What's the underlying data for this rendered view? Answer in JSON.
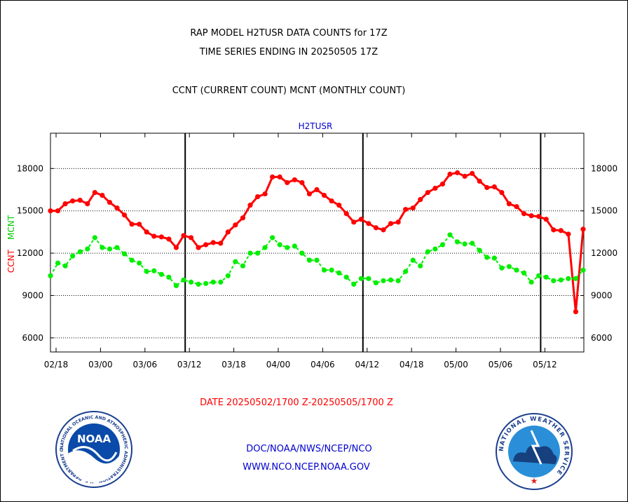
{
  "header": {
    "title_line1": "RAP MODEL H2TUSR DATA COUNTS for 17Z",
    "title_line2": "TIME SERIES ENDING IN 20250505 17Z",
    "subtitle": "CCNT (CURRENT COUNT) MCNT (MONTHLY COUNT)"
  },
  "footer": {
    "date_range": "DATE 20250502/1700 Z-20250505/1700 Z",
    "link1": "DOC/NOAA/NWS/NCEP/NCO",
    "link2": "WWW.NCO.NCEP.NOAA.GOV"
  },
  "logos": {
    "noaa_text": "NOAA",
    "noaa_ring": "NATIONAL OCEANIC AND ATMOSPHERIC ADMINISTRATION · U.S. DEPARTMENT OF COMMERCE",
    "nws_ring": "NATIONAL WEATHER SERVICE"
  },
  "colors": {
    "ccnt": "#ff0000",
    "mcnt": "#00ee00",
    "label_blue": "#0000cc",
    "date_red": "#ff0000"
  },
  "chart_data": {
    "type": "line",
    "title": "H2TUSR",
    "ylabel_left_parts": [
      "CCNT",
      "MCNT"
    ],
    "ylim": [
      5000,
      20500
    ],
    "yticks": [
      6000,
      9000,
      12000,
      15000,
      18000
    ],
    "ytick_labels": [
      "6000",
      "9000",
      "12000",
      "15000",
      "18000"
    ],
    "xticks": [
      "02/18",
      "03/00",
      "03/06",
      "03/12",
      "03/18",
      "04/00",
      "04/06",
      "04/12",
      "04/18",
      "05/00",
      "05/06",
      "05/12"
    ],
    "grid": true,
    "series": [
      {
        "name": "CCNT",
        "color": "#ff0000",
        "values": [
          15000,
          15000,
          15500,
          15700,
          15750,
          15500,
          16300,
          16100,
          15600,
          15200,
          14700,
          14050,
          14050,
          13500,
          13200,
          13150,
          13000,
          12400,
          13250,
          13100,
          12400,
          12600,
          12750,
          12700,
          13500,
          14000,
          14500,
          15400,
          16000,
          16200,
          17400,
          17400,
          17000,
          17200,
          17000,
          16200,
          16500,
          16100,
          15700,
          15400,
          14800,
          14200,
          14400,
          14100,
          13800,
          13650,
          14100,
          14200,
          15100,
          15200,
          15800,
          16300,
          16600,
          16900,
          17600,
          17700,
          17450,
          17650,
          17100,
          16650,
          16700,
          16300,
          15500,
          15300,
          14800,
          14650,
          14600,
          14400,
          13650,
          13600,
          13350,
          7850,
          13700
        ]
      },
      {
        "name": "MCNT",
        "color": "#00ee00",
        "values": [
          10400,
          11300,
          11100,
          11800,
          12100,
          12300,
          13100,
          12400,
          12300,
          12400,
          11950,
          11500,
          11300,
          10700,
          10750,
          10500,
          10300,
          9700,
          10100,
          9950,
          9800,
          9850,
          9950,
          9950,
          10400,
          11400,
          11100,
          12000,
          12000,
          12400,
          13100,
          12600,
          12400,
          12500,
          12000,
          11500,
          11500,
          10800,
          10800,
          10600,
          10300,
          9800,
          10200,
          10200,
          9900,
          10050,
          10100,
          10050,
          10700,
          11500,
          11100,
          12100,
          12300,
          12600,
          13300,
          12800,
          12650,
          12700,
          12200,
          11700,
          11650,
          10950,
          11050,
          10800,
          10600,
          9950,
          10400,
          10300,
          10050,
          10100,
          10200,
          10200,
          10800
        ]
      }
    ]
  }
}
